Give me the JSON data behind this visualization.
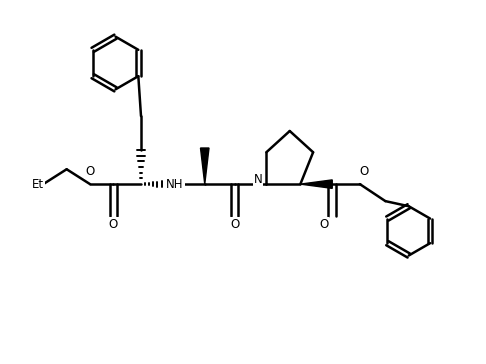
{
  "bg_color": "#ffffff",
  "line_color": "#000000",
  "lw": 1.8,
  "figsize": [
    4.86,
    3.64
  ],
  "dpi": 100,
  "xlim": [
    -0.5,
    10.5
  ],
  "ylim": [
    0,
    8.5
  ]
}
